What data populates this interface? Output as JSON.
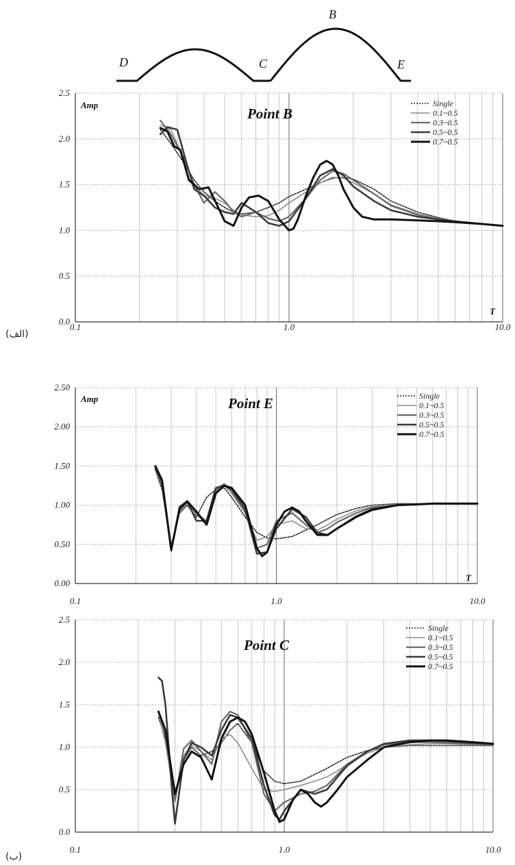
{
  "profile": {
    "points": [
      "D",
      "C",
      "B",
      "E"
    ]
  },
  "panel_tags": [
    "(الف)",
    "(ب)"
  ],
  "series_styles": [
    {
      "color": "#222222",
      "dash": "2,2",
      "width": 1.6
    },
    {
      "color": "#8c8c8c",
      "dash": "",
      "width": 1.6
    },
    {
      "color": "#6a6a6a",
      "dash": "",
      "width": 2.2
    },
    {
      "color": "#3a3a3a",
      "dash": "",
      "width": 2.6
    },
    {
      "color": "#111111",
      "dash": "",
      "width": 3.0
    }
  ],
  "chart_data": [
    {
      "type": "line",
      "title": "Point B",
      "ylabel": "Amp",
      "xlabel": "T",
      "xscale": "log",
      "xlim": [
        0.1,
        10
      ],
      "ylim": [
        0,
        2.5
      ],
      "yticks": [
        "0.0",
        "0.5",
        "1.0",
        "1.5",
        "2.0",
        "2.5"
      ],
      "xticks": [
        "0.1",
        "1.0",
        "10.0"
      ],
      "legend_position": "top-right",
      "series": [
        {
          "name": "Single",
          "x": [
            0.25,
            0.28,
            0.32,
            0.36,
            0.4,
            0.45,
            0.5,
            0.55,
            0.6,
            0.7,
            0.8,
            0.9,
            1.0,
            1.2,
            1.4,
            1.6,
            1.8,
            2.0,
            2.5,
            3,
            4,
            5,
            6,
            8,
            10
          ],
          "y": [
            2.1,
            1.95,
            1.75,
            1.55,
            1.42,
            1.32,
            1.25,
            1.2,
            1.18,
            1.2,
            1.25,
            1.3,
            1.37,
            1.45,
            1.52,
            1.57,
            1.58,
            1.56,
            1.45,
            1.32,
            1.2,
            1.14,
            1.1,
            1.07,
            1.05
          ]
        },
        {
          "name": "0.1~0.5",
          "x": [
            0.25,
            0.28,
            0.32,
            0.36,
            0.4,
            0.45,
            0.5,
            0.55,
            0.6,
            0.7,
            0.8,
            0.9,
            1.0,
            1.2,
            1.4,
            1.6,
            1.8,
            2.0,
            2.5,
            3,
            4,
            5,
            6,
            8,
            10
          ],
          "y": [
            2.15,
            2.1,
            1.8,
            1.5,
            1.38,
            1.35,
            1.3,
            1.22,
            1.17,
            1.15,
            1.16,
            1.22,
            1.3,
            1.42,
            1.52,
            1.58,
            1.57,
            1.52,
            1.4,
            1.28,
            1.18,
            1.13,
            1.1,
            1.07,
            1.05
          ]
        },
        {
          "name": "0.3~0.5",
          "x": [
            0.25,
            0.28,
            0.32,
            0.36,
            0.4,
            0.45,
            0.5,
            0.55,
            0.6,
            0.7,
            0.8,
            0.9,
            1.0,
            1.2,
            1.4,
            1.6,
            1.8,
            2.0,
            2.5,
            3,
            4,
            5,
            6,
            8,
            10
          ],
          "y": [
            2.2,
            2.05,
            1.8,
            1.5,
            1.3,
            1.42,
            1.32,
            1.2,
            1.15,
            1.2,
            1.13,
            1.1,
            1.15,
            1.35,
            1.55,
            1.65,
            1.62,
            1.55,
            1.4,
            1.27,
            1.17,
            1.12,
            1.1,
            1.07,
            1.05
          ]
        },
        {
          "name": "0.5~0.5",
          "x": [
            0.25,
            0.27,
            0.3,
            0.33,
            0.36,
            0.4,
            0.45,
            0.5,
            0.55,
            0.6,
            0.7,
            0.8,
            0.9,
            1.0,
            1.2,
            1.4,
            1.6,
            1.8,
            2.0,
            2.5,
            3,
            4,
            5,
            6,
            8,
            10
          ],
          "y": [
            2.05,
            2.13,
            2.1,
            1.75,
            1.45,
            1.38,
            1.25,
            1.2,
            1.18,
            1.3,
            1.2,
            1.08,
            1.05,
            1.1,
            1.35,
            1.6,
            1.67,
            1.6,
            1.48,
            1.32,
            1.22,
            1.15,
            1.12,
            1.1,
            1.07,
            1.05
          ]
        },
        {
          "name": "0.7~0.5",
          "x": [
            0.25,
            0.27,
            0.29,
            0.31,
            0.34,
            0.38,
            0.42,
            0.46,
            0.5,
            0.55,
            0.6,
            0.65,
            0.72,
            0.8,
            0.9,
            1.0,
            1.05,
            1.1,
            1.2,
            1.3,
            1.4,
            1.5,
            1.6,
            1.7,
            1.8,
            2.0,
            2.2,
            2.5,
            3,
            4,
            5,
            6,
            8,
            10
          ],
          "y": [
            2.12,
            2.08,
            1.92,
            1.88,
            1.55,
            1.45,
            1.47,
            1.28,
            1.1,
            1.05,
            1.25,
            1.36,
            1.38,
            1.32,
            1.12,
            1.0,
            1.02,
            1.12,
            1.38,
            1.58,
            1.72,
            1.76,
            1.72,
            1.6,
            1.45,
            1.25,
            1.15,
            1.12,
            1.12,
            1.11,
            1.1,
            1.09,
            1.07,
            1.05
          ]
        }
      ]
    },
    {
      "type": "line",
      "title": "Point E",
      "ylabel": "Amp",
      "xlabel": "T",
      "xscale": "log",
      "xlim": [
        0.1,
        10
      ],
      "ylim": [
        0,
        2.5
      ],
      "yticks": [
        "0.00",
        "0.50",
        "1.00",
        "1.50",
        "2.00",
        "2.50"
      ],
      "xticks": [
        "0.1",
        "1.0",
        "10.0"
      ],
      "legend_position": "top-right",
      "series": [
        {
          "name": "Single",
          "x": [
            0.25,
            0.27,
            0.3,
            0.33,
            0.36,
            0.4,
            0.45,
            0.5,
            0.55,
            0.6,
            0.7,
            0.8,
            0.9,
            1.0,
            1.2,
            1.4,
            1.6,
            1.8,
            2.0,
            2.5,
            3,
            4,
            5,
            6,
            8,
            10
          ],
          "y": [
            1.45,
            1.2,
            0.48,
            0.9,
            1.0,
            0.85,
            1.1,
            1.2,
            1.22,
            1.1,
            0.85,
            0.65,
            0.58,
            0.57,
            0.6,
            0.68,
            0.75,
            0.82,
            0.88,
            0.96,
            1.0,
            1.02,
            1.02,
            1.02,
            1.02,
            1.02
          ]
        },
        {
          "name": "0.1~0.5",
          "x": [
            0.25,
            0.27,
            0.3,
            0.33,
            0.36,
            0.4,
            0.45,
            0.5,
            0.55,
            0.6,
            0.7,
            0.8,
            0.9,
            1.0,
            1.2,
            1.4,
            1.6,
            1.8,
            2.0,
            2.5,
            3,
            4,
            5,
            6,
            8,
            10
          ],
          "y": [
            1.45,
            1.25,
            0.45,
            0.92,
            1.02,
            0.9,
            0.8,
            1.18,
            1.25,
            1.15,
            0.9,
            0.55,
            0.6,
            0.75,
            0.8,
            0.7,
            0.68,
            0.75,
            0.82,
            0.93,
            0.98,
            1.01,
            1.02,
            1.02,
            1.02,
            1.02
          ]
        },
        {
          "name": "0.3~0.5",
          "x": [
            0.25,
            0.27,
            0.3,
            0.33,
            0.36,
            0.4,
            0.45,
            0.5,
            0.55,
            0.6,
            0.7,
            0.8,
            0.9,
            1.0,
            1.2,
            1.4,
            1.6,
            1.8,
            2.0,
            2.5,
            3,
            4,
            5,
            6,
            8,
            10
          ],
          "y": [
            1.48,
            1.25,
            0.44,
            0.95,
            1.05,
            0.88,
            0.78,
            1.2,
            1.27,
            1.18,
            0.92,
            0.45,
            0.5,
            0.8,
            0.9,
            0.75,
            0.65,
            0.7,
            0.78,
            0.9,
            0.97,
            1.0,
            1.01,
            1.02,
            1.02,
            1.02
          ]
        },
        {
          "name": "0.5~0.5",
          "x": [
            0.25,
            0.27,
            0.3,
            0.33,
            0.36,
            0.4,
            0.45,
            0.5,
            0.55,
            0.6,
            0.7,
            0.8,
            0.9,
            1.0,
            1.2,
            1.4,
            1.6,
            1.8,
            2.0,
            2.5,
            3,
            4,
            5,
            6,
            8,
            10
          ],
          "y": [
            1.47,
            1.3,
            0.42,
            0.98,
            1.05,
            0.8,
            0.8,
            1.22,
            1.25,
            1.2,
            0.95,
            0.38,
            0.4,
            0.7,
            0.95,
            0.85,
            0.65,
            0.62,
            0.7,
            0.86,
            0.95,
            1.0,
            1.01,
            1.02,
            1.02,
            1.02
          ]
        },
        {
          "name": "0.7~0.5",
          "x": [
            0.25,
            0.27,
            0.3,
            0.33,
            0.36,
            0.4,
            0.45,
            0.5,
            0.55,
            0.6,
            0.7,
            0.8,
            0.85,
            0.9,
            1.0,
            1.1,
            1.2,
            1.3,
            1.4,
            1.6,
            1.8,
            2.0,
            2.5,
            3,
            4,
            5,
            6,
            8,
            10
          ],
          "y": [
            1.5,
            1.32,
            0.43,
            0.95,
            1.05,
            0.92,
            0.75,
            1.15,
            1.25,
            1.22,
            1.0,
            0.45,
            0.35,
            0.4,
            0.75,
            0.92,
            0.97,
            0.92,
            0.8,
            0.62,
            0.62,
            0.7,
            0.85,
            0.94,
            1.0,
            1.01,
            1.02,
            1.02,
            1.02
          ]
        }
      ]
    },
    {
      "type": "line",
      "title": "Point C",
      "ylabel": "",
      "xlabel": "",
      "xscale": "log",
      "xlim": [
        0.1,
        10
      ],
      "ylim": [
        0,
        2.5
      ],
      "yticks": [
        "0.0",
        "0.5",
        "1.0",
        "1.5",
        "2.0",
        "2.5"
      ],
      "xticks": [
        "0.1",
        "1.0",
        "10.0"
      ],
      "legend_position": "top-right",
      "series": [
        {
          "name": "Single",
          "x": [
            0.25,
            0.27,
            0.3,
            0.33,
            0.36,
            0.4,
            0.45,
            0.5,
            0.55,
            0.6,
            0.7,
            0.8,
            0.9,
            1.0,
            1.2,
            1.4,
            1.6,
            1.8,
            2.0,
            2.5,
            3,
            4,
            5,
            6,
            8,
            10
          ],
          "y": [
            1.35,
            1.1,
            0.4,
            0.85,
            1.0,
            0.9,
            0.95,
            1.05,
            1.2,
            1.28,
            1.05,
            0.72,
            0.6,
            0.57,
            0.6,
            0.68,
            0.75,
            0.82,
            0.88,
            0.96,
            1.0,
            1.02,
            1.02,
            1.02,
            1.02,
            1.02
          ]
        },
        {
          "name": "0.1~0.5",
          "x": [
            0.25,
            0.27,
            0.3,
            0.33,
            0.36,
            0.4,
            0.45,
            0.5,
            0.55,
            0.6,
            0.7,
            0.8,
            0.9,
            1.0,
            1.2,
            1.4,
            1.6,
            1.8,
            2.0,
            2.5,
            3,
            4,
            5,
            6,
            8,
            10
          ],
          "y": [
            1.4,
            1.05,
            0.35,
            0.9,
            1.02,
            0.95,
            0.85,
            1.1,
            1.15,
            1.05,
            0.75,
            0.5,
            0.48,
            0.5,
            0.55,
            0.6,
            0.65,
            0.72,
            0.8,
            0.93,
            1.0,
            1.03,
            1.04,
            1.04,
            1.03,
            1.03
          ]
        },
        {
          "name": "0.3~0.5",
          "x": [
            0.25,
            0.27,
            0.3,
            0.33,
            0.36,
            0.4,
            0.45,
            0.5,
            0.55,
            0.6,
            0.7,
            0.8,
            0.9,
            1.0,
            1.2,
            1.4,
            1.6,
            1.8,
            2.0,
            2.5,
            3,
            4,
            5,
            6,
            8,
            10
          ],
          "y": [
            1.42,
            1.15,
            0.38,
            0.98,
            1.08,
            0.95,
            0.8,
            1.3,
            1.42,
            1.38,
            1.05,
            0.45,
            0.25,
            0.35,
            0.45,
            0.48,
            0.55,
            0.68,
            0.8,
            0.95,
            1.03,
            1.06,
            1.06,
            1.05,
            1.04,
            1.03
          ]
        },
        {
          "name": "0.5~0.5",
          "x": [
            0.25,
            0.26,
            0.27,
            0.29,
            0.3,
            0.33,
            0.36,
            0.4,
            0.45,
            0.5,
            0.55,
            0.6,
            0.7,
            0.8,
            0.9,
            0.95,
            1.0,
            1.2,
            1.4,
            1.6,
            1.8,
            2.0,
            2.5,
            3,
            4,
            5,
            6,
            8,
            10
          ],
          "y": [
            1.82,
            1.78,
            1.5,
            0.5,
            0.1,
            0.85,
            1.05,
            1.0,
            0.9,
            1.2,
            1.38,
            1.35,
            1.1,
            0.55,
            0.2,
            0.15,
            0.25,
            0.5,
            0.45,
            0.5,
            0.65,
            0.78,
            0.95,
            1.04,
            1.08,
            1.08,
            1.07,
            1.05,
            1.04
          ]
        },
        {
          "name": "0.7~0.5",
          "x": [
            0.25,
            0.27,
            0.3,
            0.33,
            0.36,
            0.4,
            0.45,
            0.5,
            0.55,
            0.6,
            0.65,
            0.7,
            0.8,
            0.9,
            0.95,
            1.0,
            1.1,
            1.2,
            1.3,
            1.4,
            1.5,
            1.6,
            1.8,
            2.0,
            2.5,
            3,
            4,
            5,
            6,
            8,
            10
          ],
          "y": [
            1.42,
            1.2,
            0.45,
            0.8,
            0.95,
            0.88,
            0.62,
            1.1,
            1.3,
            1.35,
            1.3,
            1.15,
            0.7,
            0.25,
            0.12,
            0.15,
            0.38,
            0.5,
            0.45,
            0.35,
            0.3,
            0.35,
            0.5,
            0.65,
            0.85,
            1.0,
            1.06,
            1.08,
            1.08,
            1.06,
            1.04
          ]
        }
      ]
    }
  ]
}
